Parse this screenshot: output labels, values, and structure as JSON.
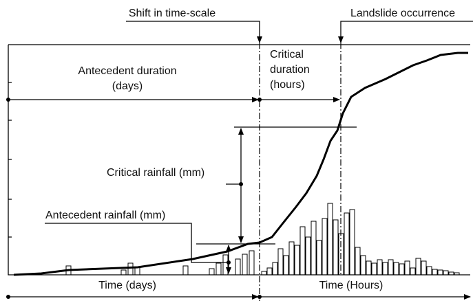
{
  "labels": {
    "shift": "Shift in time-scale",
    "landslide": "Landslide occurrence",
    "antecedent_duration": [
      "Antecedent duration",
      "(days)"
    ],
    "critical_duration": [
      "Critical",
      "duration",
      "(hours)"
    ],
    "critical_rainfall": "Critical rainfall (mm)",
    "antecedent_rainfall": "Antecedent rainfall (mm)",
    "time_days": "Time (days)",
    "time_hours": "Time (Hours)"
  }
}
